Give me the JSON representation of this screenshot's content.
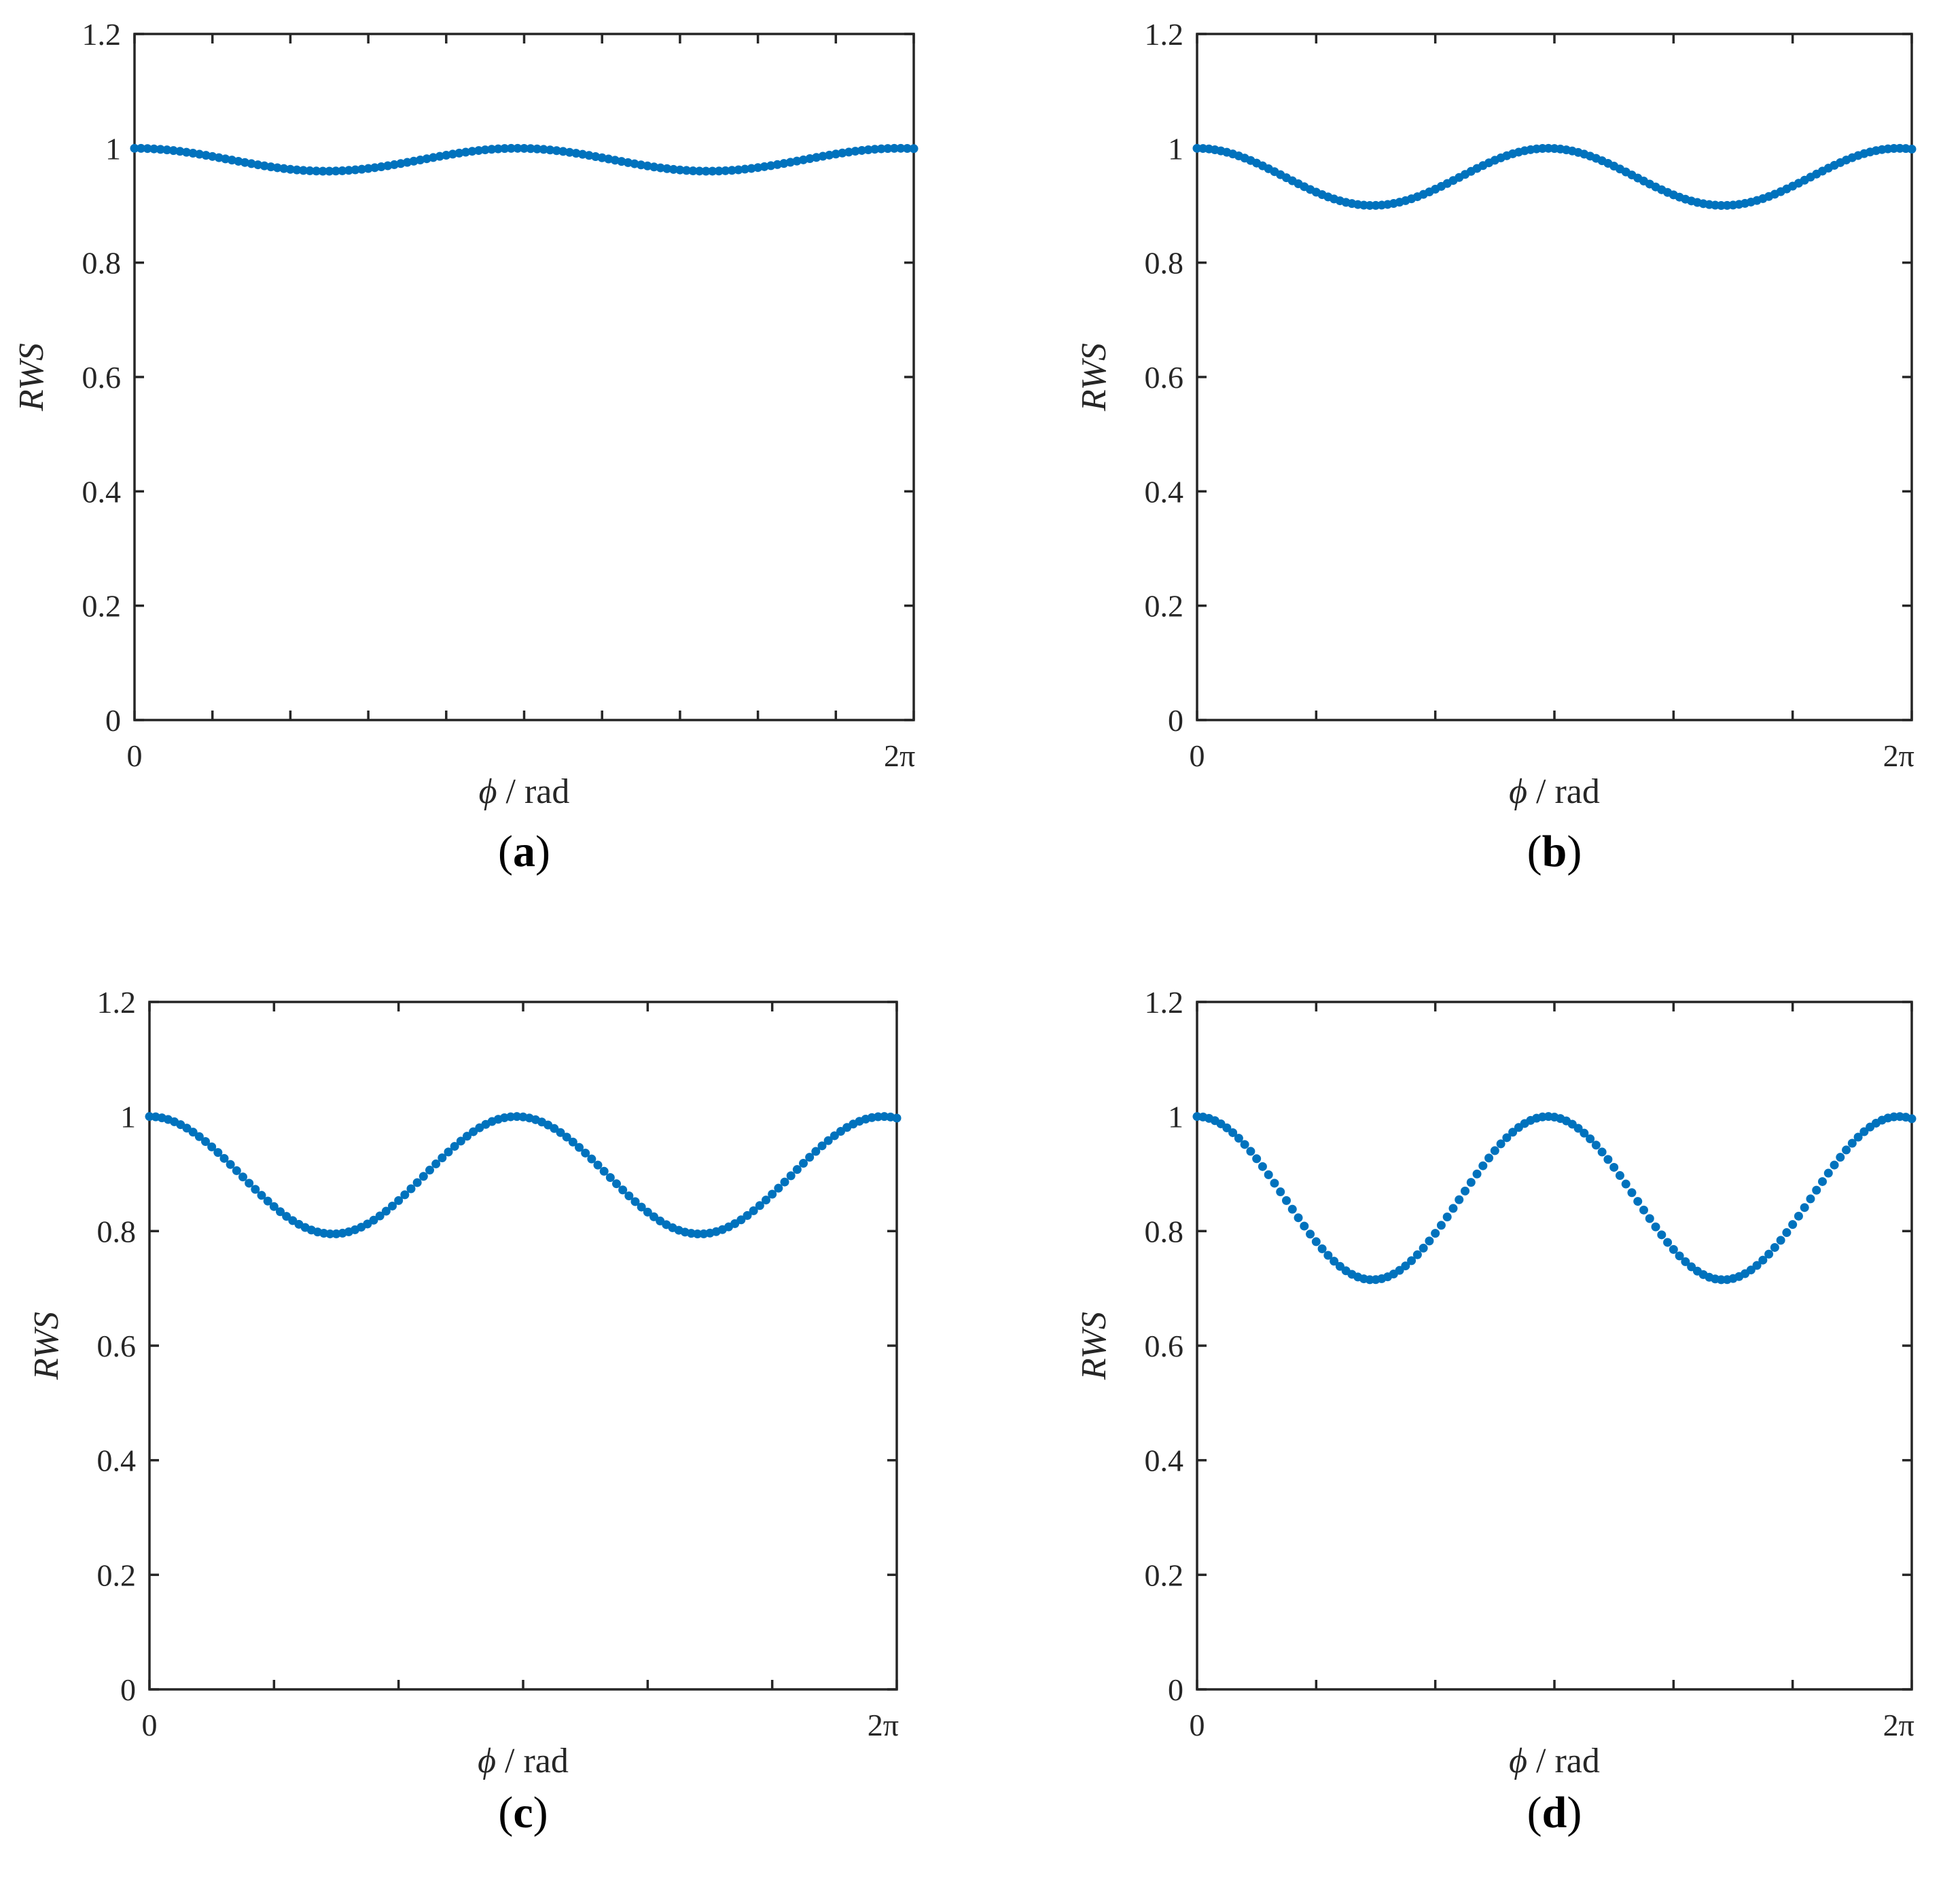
{
  "figure": {
    "colors": {
      "series": "#0072BD",
      "axes": "#262626"
    }
  },
  "chart_data": [
    {
      "id": "a",
      "type": "scatter",
      "caption": {
        "open": "(",
        "letter": "a",
        "close": ")"
      },
      "xlabel": {
        "symbol": "ϕ",
        "unit": " / rad"
      },
      "ylabel": "RWS",
      "xlim": [
        0,
        6.4
      ],
      "ylim": [
        0,
        1.2
      ],
      "x_ticks": [
        0,
        0.64,
        1.28,
        1.92,
        2.56,
        3.2,
        3.84,
        4.48,
        5.12,
        5.76,
        6.4
      ],
      "x_tick_labels": [
        {
          "value": 0,
          "label": "0"
        },
        {
          "value": 6.2832,
          "label": "2π"
        }
      ],
      "y_ticks": [
        0,
        0.2,
        0.4,
        0.6,
        0.8,
        1,
        1.2
      ],
      "y_tick_labels": [
        "0",
        "0.2",
        "0.4",
        "0.6",
        "0.8",
        "1",
        "1.2"
      ],
      "series": [
        {
          "name": "RWS",
          "x_range": [
            0,
            6.4
          ],
          "points": 121,
          "formula": "1 - A*sin^2(phi)",
          "amplitude": 0.04,
          "min_value": 0.96,
          "max_value": 1.0
        }
      ]
    },
    {
      "id": "b",
      "type": "scatter",
      "caption": {
        "open": "(",
        "letter": "b",
        "close": ")"
      },
      "xlabel": {
        "symbol": "ϕ",
        "unit": " / rad"
      },
      "ylabel": "RWS",
      "xlim": [
        0,
        6.4
      ],
      "ylim": [
        0,
        1.2
      ],
      "x_ticks": [
        0,
        1.0667,
        2.1333,
        3.2,
        4.2667,
        5.3333,
        6.4
      ],
      "x_tick_labels": [
        {
          "value": 0,
          "label": "0"
        },
        {
          "value": 6.2832,
          "label": "2π"
        }
      ],
      "y_ticks": [
        0,
        0.2,
        0.4,
        0.6,
        0.8,
        1,
        1.2
      ],
      "y_tick_labels": [
        "0",
        "0.2",
        "0.4",
        "0.6",
        "0.8",
        "1",
        "1.2"
      ],
      "series": [
        {
          "name": "RWS",
          "x_range": [
            0,
            6.4
          ],
          "points": 121,
          "formula": "1 - A*sin^2(phi)",
          "amplitude": 0.1,
          "min_value": 0.9,
          "max_value": 1.0
        }
      ]
    },
    {
      "id": "c",
      "type": "scatter",
      "caption": {
        "open": "(",
        "letter": "c",
        "close": ")"
      },
      "xlabel": {
        "symbol": "ϕ",
        "unit": " / rad"
      },
      "ylabel": "RWS",
      "xlim": [
        0,
        6.4
      ],
      "ylim": [
        0,
        1.2
      ],
      "x_ticks": [
        0,
        1.0667,
        2.1333,
        3.2,
        4.2667,
        5.3333,
        6.4
      ],
      "x_tick_labels": [
        {
          "value": 0,
          "label": "0"
        },
        {
          "value": 6.2832,
          "label": "2π"
        }
      ],
      "y_ticks": [
        0,
        0.2,
        0.4,
        0.6,
        0.8,
        1,
        1.2
      ],
      "y_tick_labels": [
        "0",
        "0.2",
        "0.4",
        "0.6",
        "0.8",
        "1",
        "1.2"
      ],
      "series": [
        {
          "name": "RWS",
          "x_range": [
            0,
            6.4
          ],
          "points": 121,
          "formula": "1 - A*sin^2(phi)",
          "amplitude": 0.205,
          "min_value": 0.795,
          "max_value": 1.0
        }
      ]
    },
    {
      "id": "d",
      "type": "scatter",
      "caption": {
        "open": "(",
        "letter": "d",
        "close": ")"
      },
      "xlabel": {
        "symbol": "ϕ",
        "unit": " / rad"
      },
      "ylabel": "RWS",
      "xlim": [
        0,
        6.4
      ],
      "ylim": [
        0,
        1.2
      ],
      "x_ticks": [
        0,
        1.0667,
        2.1333,
        3.2,
        4.2667,
        5.3333,
        6.4
      ],
      "x_tick_labels": [
        {
          "value": 0,
          "label": "0"
        },
        {
          "value": 6.2832,
          "label": "2π"
        }
      ],
      "y_ticks": [
        0,
        0.2,
        0.4,
        0.6,
        0.8,
        1,
        1.2
      ],
      "y_tick_labels": [
        "0",
        "0.2",
        "0.4",
        "0.6",
        "0.8",
        "1",
        "1.2"
      ],
      "series": [
        {
          "name": "RWS",
          "x_range": [
            0,
            6.4
          ],
          "points": 121,
          "formula": "1 - A*sin^2(phi)",
          "amplitude": 0.285,
          "min_value": 0.715,
          "max_value": 1.0
        }
      ]
    }
  ]
}
